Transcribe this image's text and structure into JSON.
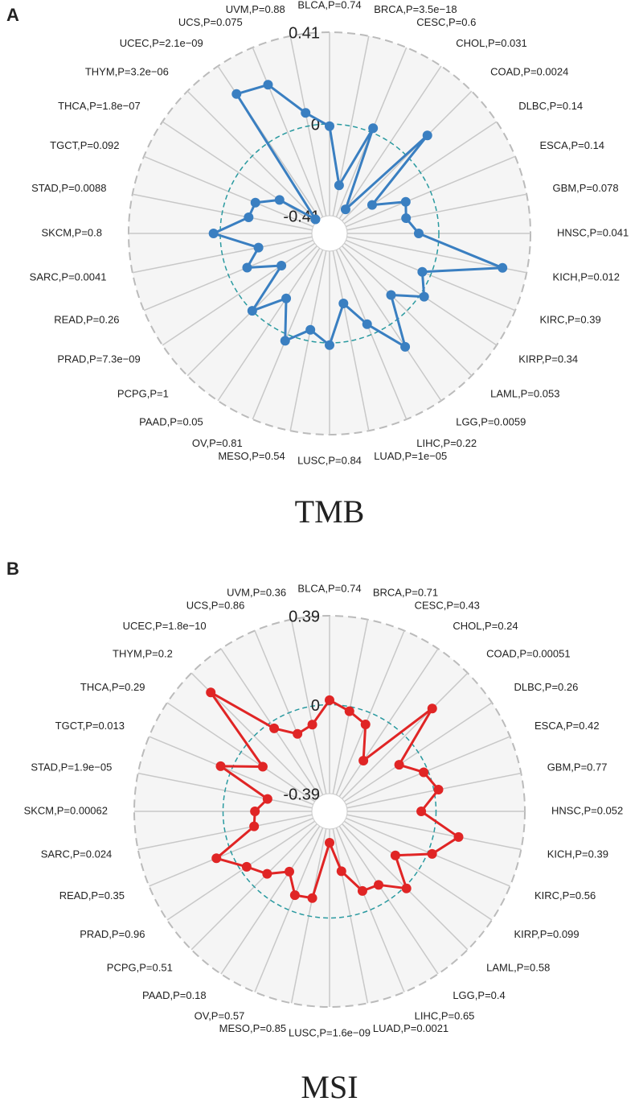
{
  "chart_data": [
    {
      "type": "radar",
      "panel": "A",
      "title": "TMB",
      "color": "#3a7fc1",
      "categories": [
        "BLCA,P=0.74",
        "BRCA,P=3.5e−18",
        "CESC,P=0.6",
        "CHOL,P=0.031",
        "COAD,P=0.0024",
        "DLBC,P=0.14",
        "ESCA,P=0.14",
        "GBM,P=0.078",
        "HNSC,P=0.041",
        "KICH,P=0.012",
        "KIRC,P=0.39",
        "KIRP,P=0.34",
        "LAML,P=0.053",
        "LGG,P=0.0059",
        "LIHC,P=0.22",
        "LUAD,P=1e−05",
        "LUSC,P=0.84",
        "MESO,P=0.54",
        "OV,P=0.81",
        "PAAD,P=0.05",
        "PCPG,P=1",
        "PRAD,P=7.3e−09",
        "READ,P=0.26",
        "SARC,P=0.0041",
        "SKCM,P=0.8",
        "STAD,P=0.0088",
        "TGCT,P=0.092",
        "THCA,P=1.8e−07",
        "THYM,P=3.2e−06",
        "UCEC,P=2.1e−09",
        "UCS,P=0.075",
        "UVM,P=0.88"
      ],
      "values": [
        -0.01,
        -0.27,
        0.02,
        -0.36,
        0.13,
        -0.26,
        -0.12,
        -0.14,
        -0.09,
        0.3,
        -0.04,
        0.02,
        -0.1,
        0.12,
        -0.05,
        -0.17,
        0.01,
        -0.05,
        0.03,
        -0.14,
        0.0,
        -0.23,
        -0.09,
        -0.165,
        0.03,
        -0.12,
        -0.13,
        -0.22,
        -0.4,
        0.26,
        0.23,
        0.06
      ],
      "rlim": [
        -0.41,
        0.41
      ],
      "rticks": [
        -0.41,
        0,
        0.41
      ]
    },
    {
      "type": "radar",
      "panel": "B",
      "title": "MSI",
      "color": "#e02525",
      "categories": [
        "BLCA,P=0.74",
        "BRCA,P=0.71",
        "CESC,P=0.43",
        "CHOL,P=0.24",
        "COAD,P=0.00051",
        "DLBC,P=0.26",
        "ESCA,P=0.42",
        "GBM,P=0.77",
        "HNSC,P=0.052",
        "KICH,P=0.39",
        "KIRC,P=0.56",
        "KIRP,P=0.099",
        "LAML,P=0.58",
        "LGG,P=0.4",
        "LIHC,P=0.65",
        "LUAD,P=0.0021",
        "LUSC,P=1.6e−09",
        "MESO,P=0.85",
        "OV,P=0.57",
        "PAAD,P=0.18",
        "PCPG,P=0.51",
        "PRAD,P=0.96",
        "READ,P=0.35",
        "SARC,P=0.024",
        "SKCM,P=0.00062",
        "STAD,P=1.9e−05",
        "TGCT,P=0.013",
        "THCA,P=0.29",
        "THYM,P=0.2",
        "UCEC,P=1.8e−10",
        "UCS,P=0.86",
        "UVM,P=0.36"
      ],
      "values": [
        0.02,
        -0.02,
        -0.055,
        -0.2,
        0.17,
        -0.1,
        -0.02,
        0.02,
        -0.065,
        0.11,
        0.02,
        -0.12,
        0.01,
        -0.08,
        -0.09,
        -0.2,
        -0.33,
        -0.08,
        -0.07,
        -0.15,
        -0.08,
        -0.03,
        0.07,
        -0.13,
        -0.14,
        -0.19,
        0.05,
        -0.115,
        0.27,
        -0.03,
        -0.1,
        -0.08
      ],
      "rlim": [
        -0.39,
        0.39
      ],
      "rticks": [
        -0.39,
        0,
        0.39
      ]
    }
  ]
}
